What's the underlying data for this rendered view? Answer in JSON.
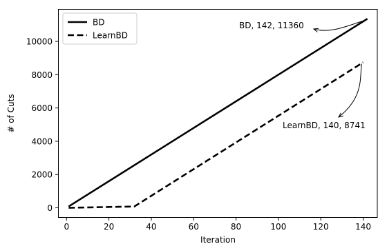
{
  "chart_data": {
    "type": "line",
    "xlabel": "Iteration",
    "ylabel": "# of Cuts",
    "xlim": [
      -4,
      147
    ],
    "ylim": [
      -600,
      11950
    ],
    "xticks": [
      0,
      20,
      40,
      60,
      80,
      100,
      120,
      140
    ],
    "yticks": [
      0,
      2000,
      4000,
      6000,
      8000,
      10000
    ],
    "grid": false,
    "legend_placement": "top-left",
    "series": [
      {
        "name": "BD",
        "style": "solid",
        "color": "#000000",
        "x": [
          1,
          142
        ],
        "y": [
          80,
          11360
        ]
      },
      {
        "name": "LearnBD",
        "style": "dashed",
        "color": "#000000",
        "x": [
          1,
          32,
          140
        ],
        "y": [
          0,
          80,
          8741
        ]
      }
    ],
    "annotations": [
      {
        "text": "BD, 142, 11360",
        "x": 142,
        "y": 11360
      },
      {
        "text": "LearnBD, 140, 8741",
        "x": 140,
        "y": 8741
      }
    ]
  }
}
